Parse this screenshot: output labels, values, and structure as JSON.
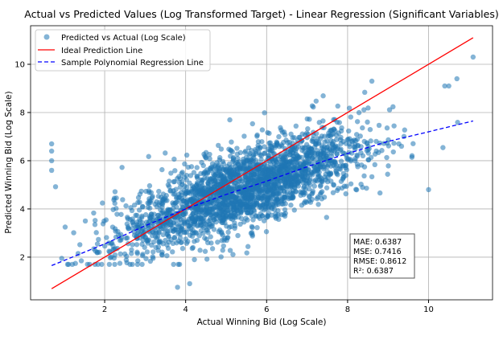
{
  "chart_data": {
    "type": "scatter",
    "title": "Actual vs Predicted Values (Log Transformed Target) - Linear Regression (Significant Variables)",
    "xlabel": "Actual Winning Bid (Log Scale)",
    "ylabel": "Predicted Winning Bid (Log Scale)",
    "xlim": [
      0.17,
      11.58
    ],
    "ylim": [
      0.23,
      11.6
    ],
    "xticks": [
      2,
      4,
      6,
      8,
      10
    ],
    "yticks": [
      2,
      4,
      6,
      8,
      10
    ],
    "grid": true,
    "legend_position": "top-left",
    "legend": [
      "Predicted vs Actual (Log Scale)",
      "Ideal Prediction Line",
      "Sample Polynomial Regression Line"
    ],
    "colors": {
      "scatter": "#1f77b4",
      "ideal": "#ff0000",
      "poly": "#0000ff"
    },
    "ideal_line": {
      "x": [
        0.69,
        11.1
      ],
      "y": [
        0.69,
        11.1
      ]
    },
    "poly_line": {
      "x": [
        0.69,
        2,
        3,
        4,
        5,
        6,
        7,
        8,
        9,
        10,
        11.1
      ],
      "y": [
        1.65,
        2.55,
        3.3,
        4.0,
        4.6,
        5.15,
        5.75,
        6.3,
        6.8,
        7.2,
        7.65
      ]
    },
    "scatter_summary": {
      "n_points_drawn": 2500,
      "x_range": [
        0.69,
        11.1
      ],
      "y_range": [
        0.7,
        10.3
      ],
      "fit": "y ≈ poly_line, sd ≈ 0.85"
    },
    "scatter_outliers": {
      "x": [
        0.69,
        0.69,
        0.69,
        0.69,
        11.1,
        10.7,
        10.5,
        10.4,
        3.8,
        4.1,
        10,
        8.6
      ],
      "y": [
        6.7,
        6.4,
        6.0,
        5.6,
        10.3,
        9.4,
        9.1,
        9.1,
        0.75,
        0.9,
        4.8,
        9.3
      ]
    },
    "stats": [
      "MAE: 0.6387",
      "MSE: 0.7416",
      "RMSE: 0.8612",
      "R²: 0.6387"
    ]
  }
}
